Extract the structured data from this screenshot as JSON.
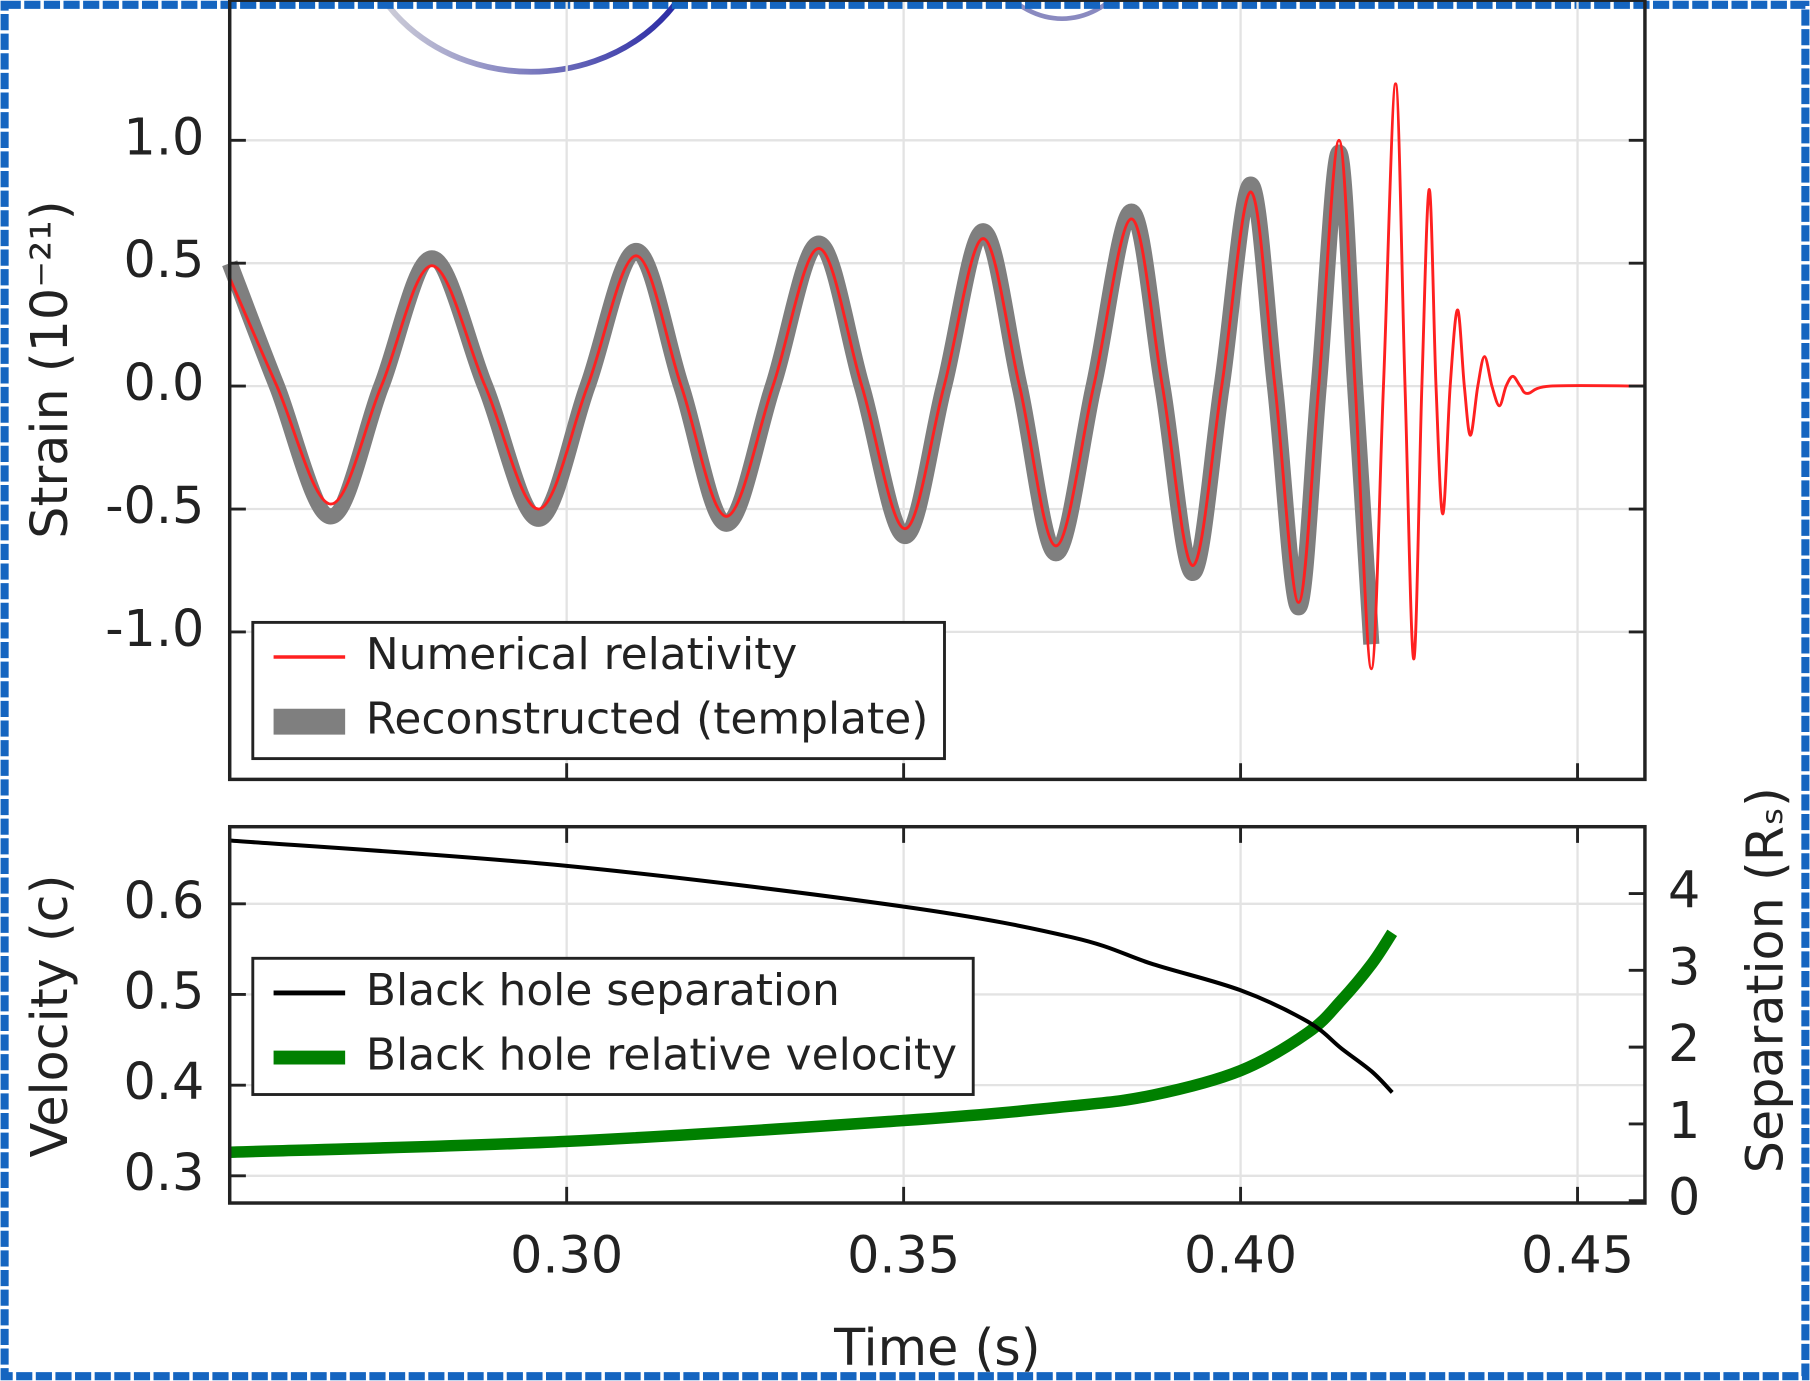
{
  "chart_data": [
    {
      "type": "line",
      "ylabel": "Strain (10⁻²¹)",
      "x": [
        0.25,
        0.257,
        0.265,
        0.2725,
        0.28,
        0.2879,
        0.2958,
        0.3031,
        0.3103,
        0.317,
        0.3237,
        0.3306,
        0.3374,
        0.3438,
        0.3502,
        0.356,
        0.3618,
        0.3672,
        0.3726,
        0.3782,
        0.3838,
        0.3884,
        0.3929,
        0.3972,
        0.4015,
        0.4051,
        0.4086,
        0.4116,
        0.4146,
        0.417,
        0.4194,
        0.4212,
        0.423,
        0.4244,
        0.4257,
        0.4269,
        0.428,
        0.429,
        0.43,
        0.4311,
        0.4322,
        0.4332,
        0.4341,
        0.4352,
        0.4362,
        0.4373,
        0.4384,
        0.4394,
        0.4404,
        0.4415,
        0.4426,
        0.446,
        0.46
      ],
      "series": [
        {
          "name": "Reconstructed (template)",
          "color": "#7f7f7f",
          "values": [
            0.5,
            0,
            -0.53,
            0,
            0.52,
            0,
            -0.54,
            0,
            0.55,
            0,
            -0.56,
            0,
            0.58,
            0,
            -0.61,
            0,
            0.63,
            0,
            -0.68,
            0,
            0.71,
            0,
            -0.76,
            0,
            0.82,
            0,
            -0.9,
            0,
            0.95,
            0,
            -1.05,
            null,
            null,
            null,
            null,
            null,
            null,
            null,
            null,
            null,
            null,
            null,
            null,
            null,
            null,
            null,
            null,
            null,
            null,
            null,
            null,
            null,
            null
          ]
        },
        {
          "name": "Numerical relativity",
          "color": "#ff2020",
          "values": [
            0.44,
            0,
            -0.48,
            0,
            0.49,
            0,
            -0.5,
            0,
            0.53,
            0,
            -0.53,
            0,
            0.56,
            0,
            -0.58,
            0,
            0.6,
            0,
            -0.65,
            0,
            0.68,
            0,
            -0.73,
            0,
            0.79,
            0,
            -0.88,
            0,
            1.0,
            0,
            -1.15,
            0,
            1.23,
            0,
            -1.11,
            0,
            0.8,
            0,
            -0.52,
            0,
            0.31,
            0,
            -0.2,
            0,
            0.12,
            0,
            -0.08,
            0,
            0.04,
            0,
            -0.03,
            0,
            0
          ]
        }
      ],
      "legend_order": [
        1,
        0
      ],
      "xlim": [
        0.25,
        0.46
      ],
      "ylim": [
        -1.6,
        1.57
      ],
      "xticks": [
        0.3,
        0.35,
        0.4,
        0.45
      ],
      "show_xtick_labels": false,
      "yticks": [
        {
          "value": -1,
          "label": "-1.0"
        },
        -0.5,
        {
          "value": 0,
          "label": "0.0"
        },
        0.5,
        {
          "value": 1,
          "label": "1.0"
        }
      ],
      "grid": true,
      "legend": "lower left"
    },
    {
      "type": "line",
      "xlabel": "Time (s)",
      "ylabel": "Velocity (c)",
      "y2label": "Separation (Rₛ)",
      "x": [
        0.25,
        0.3,
        0.35,
        0.375,
        0.387,
        0.4,
        0.41,
        0.415,
        0.4195,
        0.4225
      ],
      "series": [
        {
          "name": "Black hole relative velocity",
          "color": "#008000",
          "values": [
            0.326,
            0.338,
            0.361,
            0.377,
            0.389,
            0.416,
            0.458,
            0.494,
            0.534,
            0.568
          ]
        },
        {
          "name": "Black hole separation",
          "color": "#000000",
          "axis": "y2",
          "values": [
            4.69,
            4.36,
            3.83,
            3.43,
            3.08,
            2.74,
            2.33,
            1.98,
            1.68,
            1.41
          ]
        }
      ],
      "legend_order": [
        1,
        0
      ],
      "xlim": [
        0.25,
        0.46
      ],
      "ylim": [
        0.27,
        0.685
      ],
      "y2lim": [
        -0.03,
        4.87
      ],
      "xticks": [
        {
          "value": 0.3,
          "label": "0.30"
        },
        {
          "value": 0.35,
          "label": "0.35"
        },
        {
          "value": 0.4,
          "label": "0.40"
        },
        {
          "value": 0.45,
          "label": "0.45"
        }
      ],
      "show_xtick_labels": true,
      "yticks": [
        0.3,
        0.4,
        0.5,
        0.6
      ],
      "y2ticks": [
        0,
        1,
        2,
        3,
        4
      ],
      "grid": true,
      "legend": "center left"
    }
  ]
}
